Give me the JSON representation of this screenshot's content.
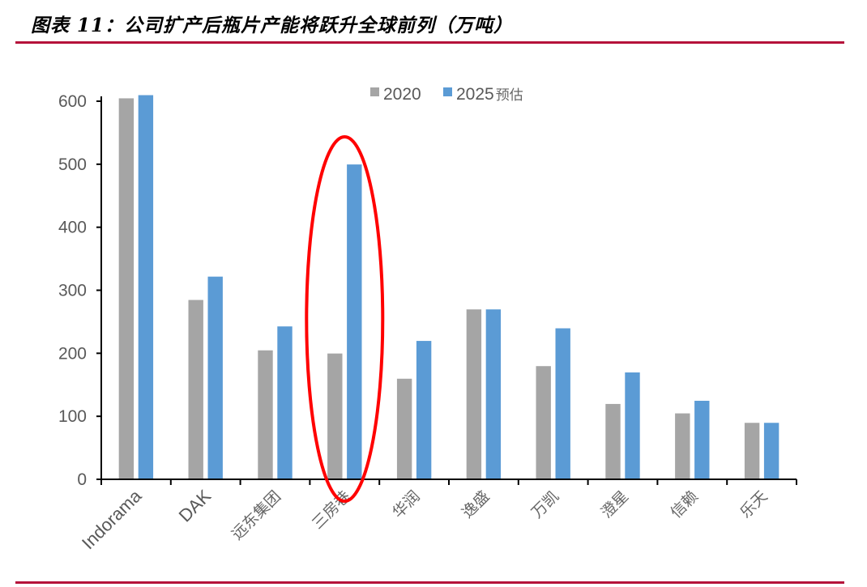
{
  "figure": {
    "title": "图表 11：公司扩产后瓶片产能将跃升全球前列（万吨）"
  },
  "colors": {
    "series_2020": "#a5a5a5",
    "series_2025": "#5b9bd5",
    "highlight_ellipse": "#ff0000",
    "rule": "#b5123a",
    "axis": "#000000",
    "text": "#595959"
  },
  "legend": {
    "items": [
      {
        "label": "2020",
        "color": "#a5a5a5"
      },
      {
        "label": "2025",
        "suffix": "预估",
        "color": "#5b9bd5"
      }
    ]
  },
  "chart_data": {
    "type": "bar",
    "title": "图表 11：公司扩产后瓶片产能将跃升全球前列（万吨）",
    "xlabel": "",
    "ylabel": "",
    "unit": "万吨",
    "ylim": [
      0,
      600
    ],
    "yticks": [
      0,
      100,
      200,
      300,
      400,
      500,
      600
    ],
    "grid": false,
    "legend_position": "top",
    "categories": [
      "Indorama",
      "DAK",
      "远东集团",
      "三房巷",
      "华润",
      "逸盛",
      "万凯",
      "澄星",
      "信赖",
      "乐天"
    ],
    "series": [
      {
        "name": "2020",
        "values": [
          605,
          285,
          205,
          200,
          160,
          270,
          180,
          120,
          105,
          90
        ]
      },
      {
        "name": "2025预估",
        "values": [
          610,
          322,
          243,
          500,
          220,
          270,
          240,
          170,
          125,
          90
        ]
      }
    ],
    "annotations": [
      {
        "type": "ellipse",
        "target_category": "三房巷",
        "color": "#ff0000",
        "description": "red ellipse highlighting 三房巷"
      }
    ]
  }
}
